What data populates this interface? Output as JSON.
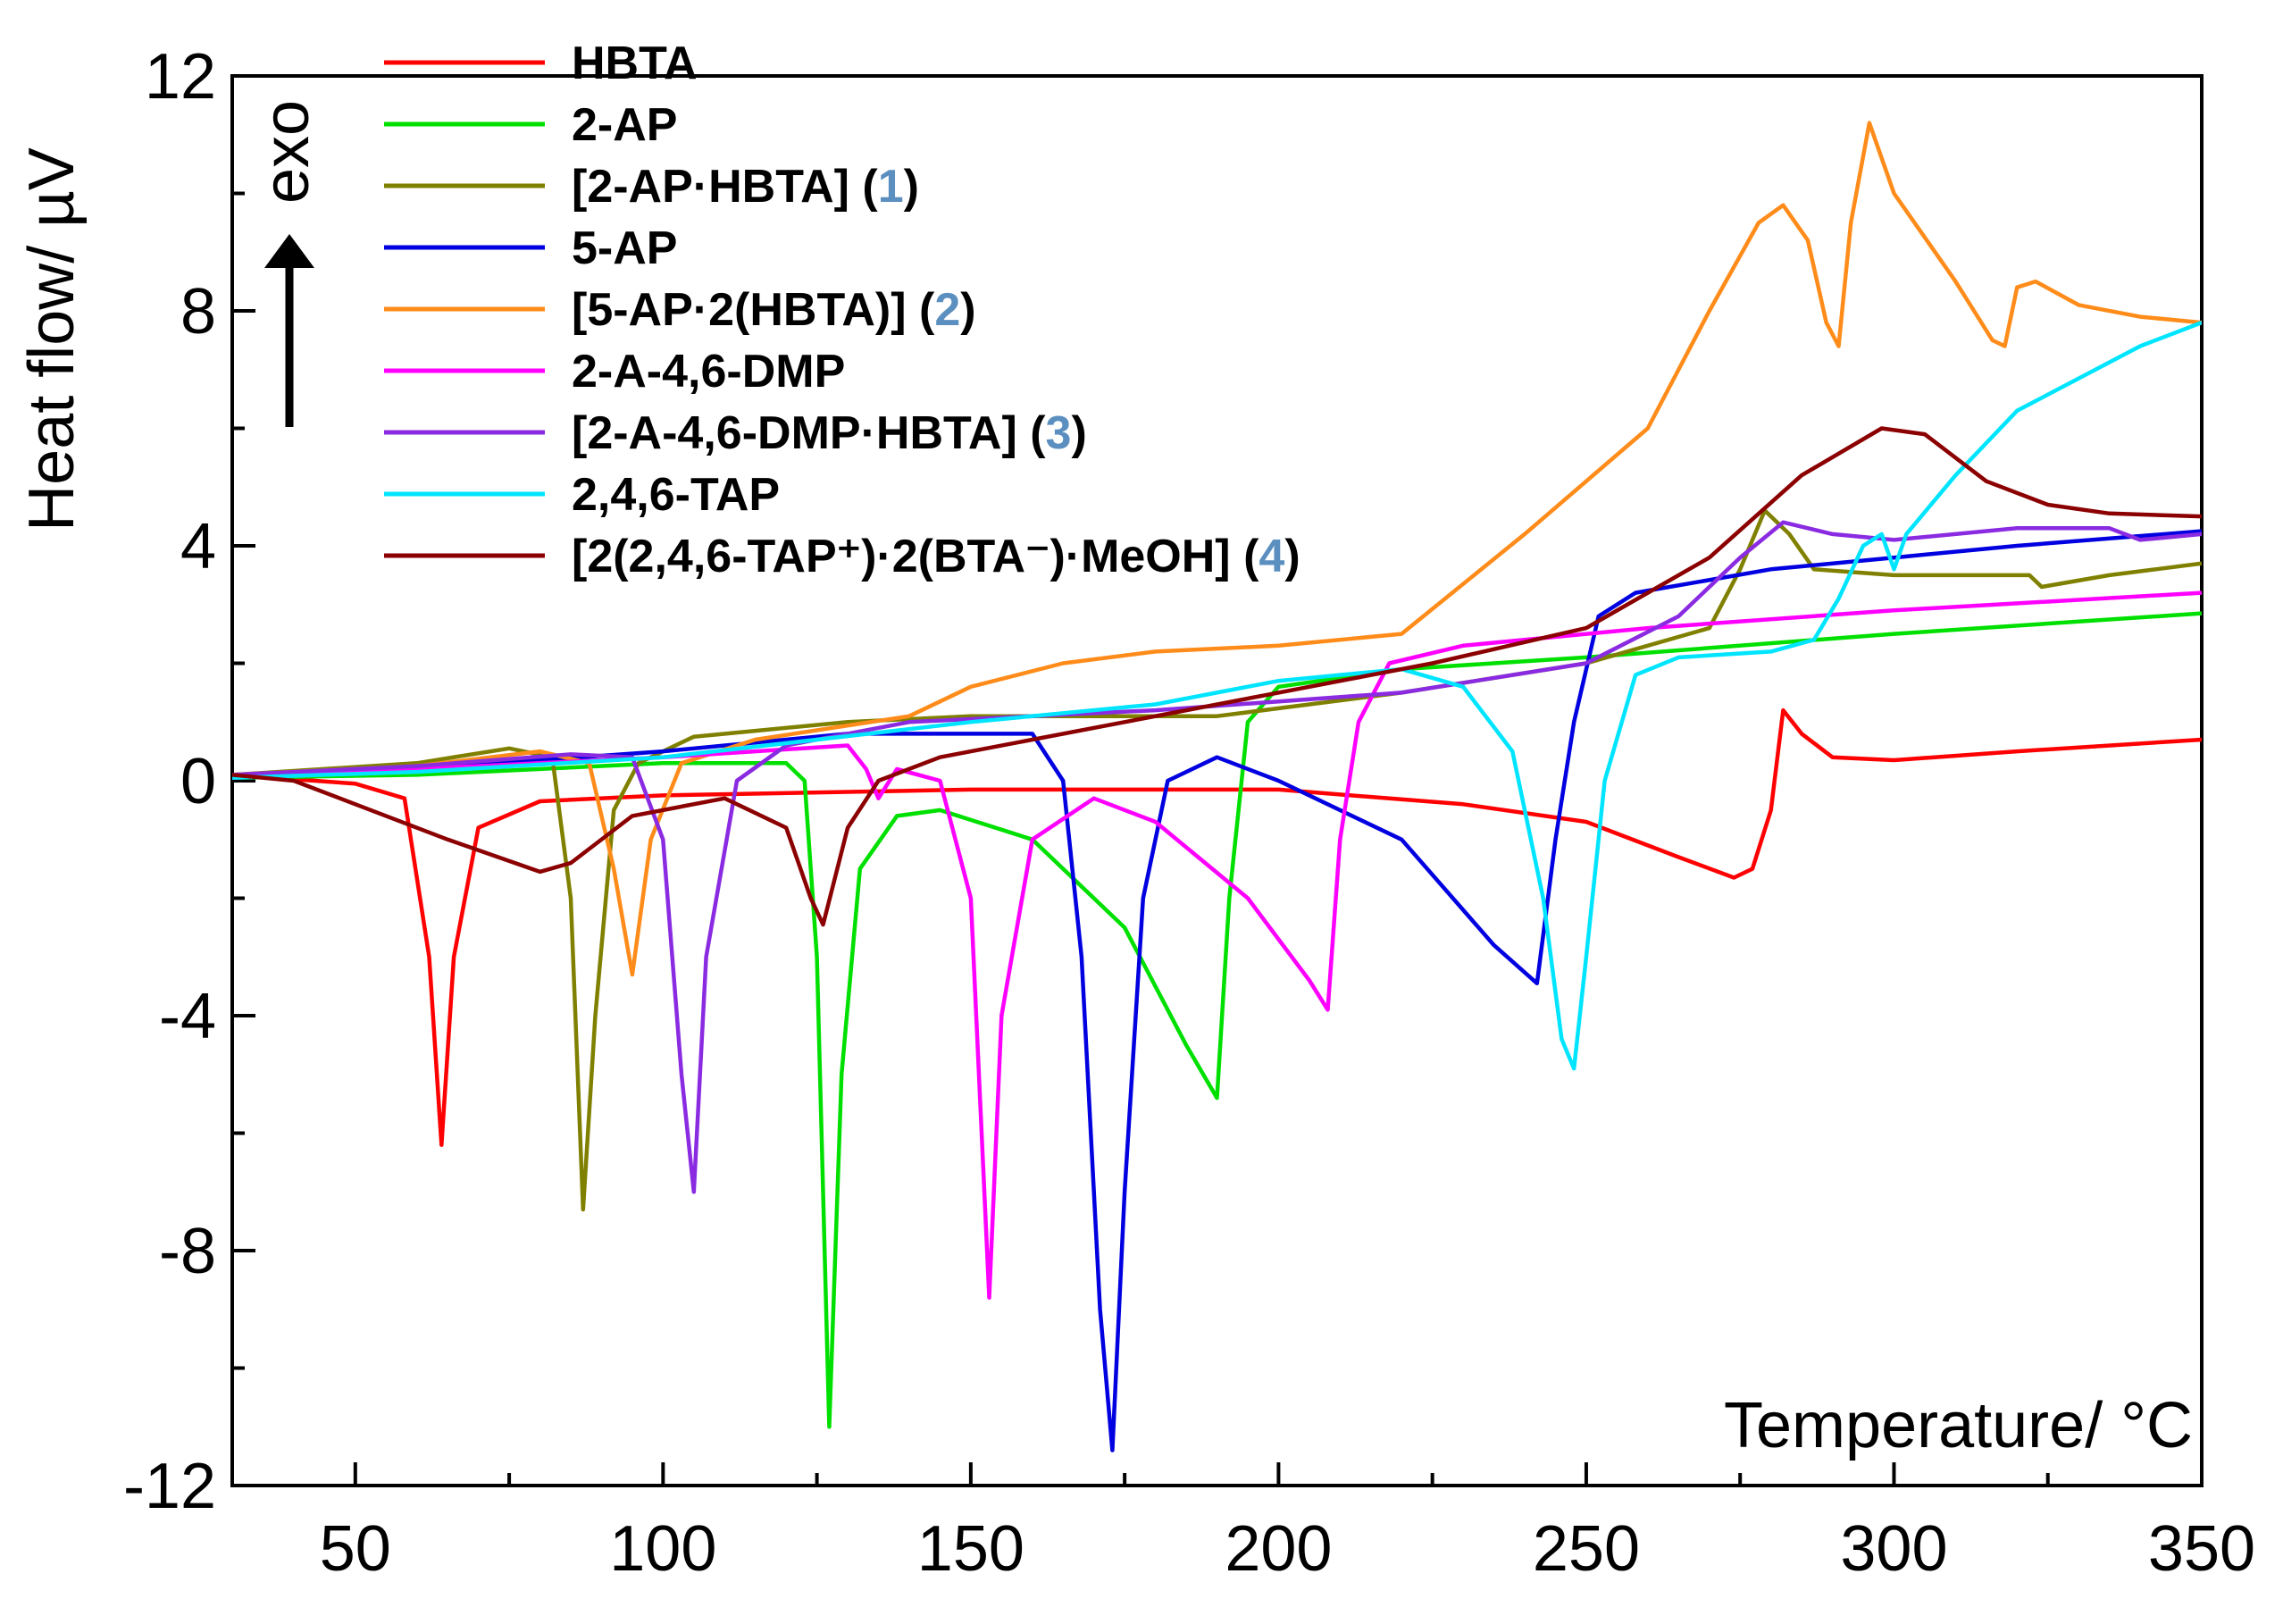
{
  "chart_data": {
    "type": "line",
    "xlabel": "Temperature/ °C",
    "ylabel": "Heat flow/ µV",
    "arrow_label": "exo",
    "xlim": [
      30,
      350
    ],
    "ylim": [
      -12,
      12
    ],
    "x_ticks": [
      50,
      100,
      150,
      200,
      250,
      300,
      350
    ],
    "y_ticks": [
      -12,
      -8,
      -4,
      0,
      4,
      8,
      12
    ],
    "x_tick_labels": [
      "50",
      "100",
      "150",
      "200",
      "250",
      "300",
      "350"
    ],
    "y_tick_labels": [
      "-12",
      "-8",
      "-4",
      "0",
      "4",
      "8",
      "12"
    ],
    "legend_number_color": "#5b8fc0",
    "series": [
      {
        "name": "HBTA",
        "label_main": "HBTA",
        "label_num": "",
        "label_tail": "",
        "color": "#ff0000",
        "points": [
          [
            30,
            0.1
          ],
          [
            50,
            -0.05
          ],
          [
            58,
            -0.3
          ],
          [
            62,
            -3
          ],
          [
            64,
            -6.2
          ],
          [
            66,
            -3
          ],
          [
            70,
            -0.8
          ],
          [
            80,
            -0.35
          ],
          [
            100,
            -0.25
          ],
          [
            150,
            -0.15
          ],
          [
            200,
            -0.15
          ],
          [
            230,
            -0.4
          ],
          [
            250,
            -0.7
          ],
          [
            265,
            -1.3
          ],
          [
            274,
            -1.65
          ],
          [
            277,
            -1.5
          ],
          [
            280,
            -0.5
          ],
          [
            282,
            1.2
          ],
          [
            285,
            0.8
          ],
          [
            290,
            0.4
          ],
          [
            300,
            0.35
          ],
          [
            320,
            0.5
          ],
          [
            350,
            0.7
          ]
        ]
      },
      {
        "name": "2-AP",
        "label_main": "2-AP",
        "label_num": "",
        "label_tail": "",
        "color": "#00e000",
        "points": [
          [
            30,
            0.05
          ],
          [
            60,
            0.1
          ],
          [
            100,
            0.3
          ],
          [
            120,
            0.3
          ],
          [
            123,
            0
          ],
          [
            125,
            -3
          ],
          [
            127,
            -11
          ],
          [
            129,
            -5
          ],
          [
            132,
            -1.5
          ],
          [
            138,
            -0.6
          ],
          [
            145,
            -0.5
          ],
          [
            160,
            -1
          ],
          [
            175,
            -2.5
          ],
          [
            185,
            -4.5
          ],
          [
            190,
            -5.4
          ],
          [
            192,
            -2
          ],
          [
            195,
            1
          ],
          [
            200,
            1.6
          ],
          [
            220,
            1.9
          ],
          [
            250,
            2.1
          ],
          [
            300,
            2.5
          ],
          [
            350,
            2.85
          ]
        ]
      },
      {
        "name": "[2-AP·HBTA] (1)",
        "label_main": "[2-AP·HBTA] (",
        "label_num": "1",
        "label_tail": ")",
        "color": "#808000",
        "points": [
          [
            30,
            0.1
          ],
          [
            60,
            0.3
          ],
          [
            75,
            0.55
          ],
          [
            82,
            0.4
          ],
          [
            85,
            -2
          ],
          [
            87,
            -7.3
          ],
          [
            89,
            -4
          ],
          [
            92,
            -0.5
          ],
          [
            96,
            0.3
          ],
          [
            105,
            0.75
          ],
          [
            130,
            1
          ],
          [
            150,
            1.1
          ],
          [
            190,
            1.1
          ],
          [
            220,
            1.5
          ],
          [
            250,
            2
          ],
          [
            270,
            2.6
          ],
          [
            275,
            3.6
          ],
          [
            279,
            4.6
          ],
          [
            283,
            4.2
          ],
          [
            287,
            3.6
          ],
          [
            300,
            3.5
          ],
          [
            322,
            3.5
          ],
          [
            324,
            3.3
          ],
          [
            335,
            3.5
          ],
          [
            350,
            3.7
          ]
        ]
      },
      {
        "name": "5-AP",
        "label_main": "5-AP",
        "label_num": "",
        "label_tail": "",
        "color": "#0000e0",
        "points": [
          [
            30,
            0.05
          ],
          [
            60,
            0.2
          ],
          [
            100,
            0.5
          ],
          [
            130,
            0.8
          ],
          [
            160,
            0.8
          ],
          [
            165,
            0
          ],
          [
            168,
            -3
          ],
          [
            171,
            -9
          ],
          [
            173,
            -11.4
          ],
          [
            175,
            -7
          ],
          [
            178,
            -2
          ],
          [
            182,
            0
          ],
          [
            190,
            0.4
          ],
          [
            200,
            0
          ],
          [
            220,
            -1
          ],
          [
            235,
            -2.8
          ],
          [
            242,
            -3.45
          ],
          [
            245,
            -1
          ],
          [
            248,
            1
          ],
          [
            252,
            2.8
          ],
          [
            258,
            3.2
          ],
          [
            280,
            3.6
          ],
          [
            300,
            3.8
          ],
          [
            320,
            4
          ],
          [
            350,
            4.25
          ]
        ]
      },
      {
        "name": "[5-AP·2(HBTA)] (2)",
        "label_main": "[5-AP·2(HBTA)] (",
        "label_num": "2",
        "label_tail": ")",
        "color": "#ff8c1a",
        "points": [
          [
            30,
            0.1
          ],
          [
            60,
            0.25
          ],
          [
            80,
            0.5
          ],
          [
            88,
            0.3
          ],
          [
            92,
            -1.5
          ],
          [
            95,
            -3.3
          ],
          [
            98,
            -1
          ],
          [
            103,
            0.3
          ],
          [
            115,
            0.7
          ],
          [
            140,
            1.1
          ],
          [
            150,
            1.6
          ],
          [
            165,
            2
          ],
          [
            180,
            2.2
          ],
          [
            200,
            2.3
          ],
          [
            220,
            2.5
          ],
          [
            240,
            4.2
          ],
          [
            260,
            6
          ],
          [
            270,
            8
          ],
          [
            278,
            9.5
          ],
          [
            282,
            9.8
          ],
          [
            286,
            9.2
          ],
          [
            289,
            7.8
          ],
          [
            291,
            7.4
          ],
          [
            293,
            9.5
          ],
          [
            296,
            11.2
          ],
          [
            300,
            10
          ],
          [
            310,
            8.5
          ],
          [
            316,
            7.5
          ],
          [
            318,
            7.4
          ],
          [
            320,
            8.4
          ],
          [
            323,
            8.5
          ],
          [
            330,
            8.1
          ],
          [
            340,
            7.9
          ],
          [
            350,
            7.8
          ]
        ]
      },
      {
        "name": "2-A-4,6-DMP",
        "label_main": "2-A-4,6-DMP",
        "label_num": "",
        "label_tail": "",
        "color": "#ff00ff",
        "points": [
          [
            30,
            0.05
          ],
          [
            60,
            0.2
          ],
          [
            100,
            0.4
          ],
          [
            130,
            0.6
          ],
          [
            133,
            0.2
          ],
          [
            135,
            -0.3
          ],
          [
            138,
            0.2
          ],
          [
            145,
            0
          ],
          [
            150,
            -2
          ],
          [
            153,
            -8.8
          ],
          [
            155,
            -4
          ],
          [
            160,
            -1
          ],
          [
            170,
            -0.3
          ],
          [
            180,
            -0.7
          ],
          [
            195,
            -2
          ],
          [
            205,
            -3.4
          ],
          [
            208,
            -3.9
          ],
          [
            210,
            -1
          ],
          [
            213,
            1
          ],
          [
            218,
            2
          ],
          [
            230,
            2.3
          ],
          [
            260,
            2.6
          ],
          [
            300,
            2.9
          ],
          [
            350,
            3.2
          ]
        ]
      },
      {
        "name": "[2-A-4,6-DMP·HBTA] (3)",
        "label_main": "[2-A-4,6-DMP·HBTA] (",
        "label_num": "3",
        "label_tail": ")",
        "color": "#8a2be2",
        "points": [
          [
            30,
            0.1
          ],
          [
            60,
            0.25
          ],
          [
            85,
            0.45
          ],
          [
            95,
            0.4
          ],
          [
            100,
            -1
          ],
          [
            103,
            -5
          ],
          [
            105,
            -7
          ],
          [
            107,
            -3
          ],
          [
            112,
            0
          ],
          [
            120,
            0.6
          ],
          [
            140,
            1
          ],
          [
            180,
            1.2
          ],
          [
            220,
            1.5
          ],
          [
            250,
            2
          ],
          [
            265,
            2.8
          ],
          [
            275,
            3.8
          ],
          [
            282,
            4.4
          ],
          [
            290,
            4.2
          ],
          [
            300,
            4.1
          ],
          [
            320,
            4.3
          ],
          [
            335,
            4.3
          ],
          [
            340,
            4.1
          ],
          [
            350,
            4.2
          ]
        ]
      },
      {
        "name": "2,4,6-TAP",
        "label_main": "2,4,6-TAP",
        "label_num": "",
        "label_tail": "",
        "color": "#00e5ff",
        "points": [
          [
            30,
            0.05
          ],
          [
            60,
            0.15
          ],
          [
            100,
            0.4
          ],
          [
            150,
            1
          ],
          [
            180,
            1.3
          ],
          [
            200,
            1.7
          ],
          [
            220,
            1.9
          ],
          [
            230,
            1.6
          ],
          [
            238,
            0.5
          ],
          [
            243,
            -2
          ],
          [
            246,
            -4.4
          ],
          [
            248,
            -4.9
          ],
          [
            250,
            -3
          ],
          [
            253,
            0
          ],
          [
            258,
            1.8
          ],
          [
            265,
            2.1
          ],
          [
            280,
            2.2
          ],
          [
            287,
            2.4
          ],
          [
            291,
            3.1
          ],
          [
            295,
            4
          ],
          [
            298,
            4.2
          ],
          [
            300,
            3.6
          ],
          [
            302,
            4.2
          ],
          [
            310,
            5.2
          ],
          [
            320,
            6.3
          ],
          [
            340,
            7.4
          ],
          [
            350,
            7.8
          ]
        ]
      },
      {
        "name": "[2(2,4,6-TAP⁺)·2(BTA⁻)·MeOH] (4)",
        "label_main": "[2(2,4,6-TAP⁺)·2(BTA⁻)·MeOH] (",
        "label_num": "4",
        "label_tail": ")",
        "color": "#8b0000",
        "points": [
          [
            30,
            0.1
          ],
          [
            40,
            0
          ],
          [
            50,
            -0.4
          ],
          [
            65,
            -1
          ],
          [
            80,
            -1.55
          ],
          [
            85,
            -1.4
          ],
          [
            95,
            -0.6
          ],
          [
            110,
            -0.3
          ],
          [
            120,
            -0.8
          ],
          [
            124,
            -2
          ],
          [
            126,
            -2.45
          ],
          [
            130,
            -0.8
          ],
          [
            135,
            0
          ],
          [
            145,
            0.4
          ],
          [
            175,
            1
          ],
          [
            200,
            1.5
          ],
          [
            225,
            2
          ],
          [
            250,
            2.6
          ],
          [
            270,
            3.8
          ],
          [
            285,
            5.2
          ],
          [
            298,
            6
          ],
          [
            305,
            5.9
          ],
          [
            315,
            5.1
          ],
          [
            325,
            4.7
          ],
          [
            335,
            4.55
          ],
          [
            350,
            4.5
          ]
        ]
      }
    ]
  }
}
